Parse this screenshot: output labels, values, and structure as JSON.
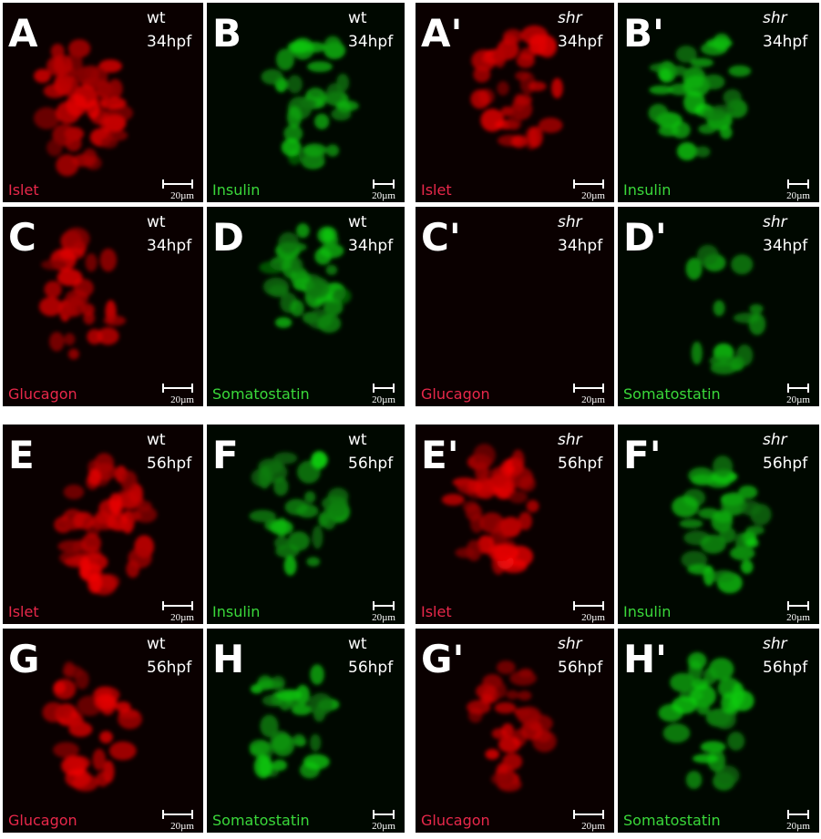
{
  "panels": [
    {
      "label": "A",
      "genotype": "wt",
      "stage": "34hpf",
      "marker": "Islet",
      "scale": "20µm"
    },
    {
      "label": "B",
      "genotype": "wt",
      "stage": "34hpf",
      "marker": "Insulin",
      "scale": "20µm"
    },
    {
      "label": "A'",
      "genotype": "shr",
      "stage": "34hpf",
      "marker": "Islet",
      "scale": "20µm"
    },
    {
      "label": "B'",
      "genotype": "shr",
      "stage": "34hpf",
      "marker": "Insulin",
      "scale": "20µm"
    },
    {
      "label": "C",
      "genotype": "wt",
      "stage": "34hpf",
      "marker": "Glucagon",
      "scale": "20µm"
    },
    {
      "label": "D",
      "genotype": "wt",
      "stage": "34hpf",
      "marker": "Somatostatin",
      "scale": "20µm"
    },
    {
      "label": "C'",
      "genotype": "shr",
      "stage": "34hpf",
      "marker": "Glucagon",
      "scale": "20µm"
    },
    {
      "label": "D'",
      "genotype": "shr",
      "stage": "34hpf",
      "marker": "Somatostatin",
      "scale": "20µm"
    },
    {
      "label": "E",
      "genotype": "wt",
      "stage": "56hpf",
      "marker": "Islet",
      "scale": "20µm"
    },
    {
      "label": "F",
      "genotype": "wt",
      "stage": "56hpf",
      "marker": "Insulin",
      "scale": "20µm"
    },
    {
      "label": "E'",
      "genotype": "shr",
      "stage": "56hpf",
      "marker": "Islet",
      "scale": "20µm"
    },
    {
      "label": "F'",
      "genotype": "shr",
      "stage": "56hpf",
      "marker": "Insulin",
      "scale": "20µm"
    },
    {
      "label": "G",
      "genotype": "wt",
      "stage": "56hpf",
      "marker": "Glucagon",
      "scale": "20µm"
    },
    {
      "label": "H",
      "genotype": "wt",
      "stage": "56hpf",
      "marker": "Somatostatin",
      "scale": "20µm"
    },
    {
      "label": "G'",
      "genotype": "shr",
      "stage": "56hpf",
      "marker": "Glucagon",
      "scale": "20µm"
    },
    {
      "label": "H'",
      "genotype": "shr",
      "stage": "56hpf",
      "marker": "Somatostatin",
      "scale": "20µm"
    }
  ]
}
